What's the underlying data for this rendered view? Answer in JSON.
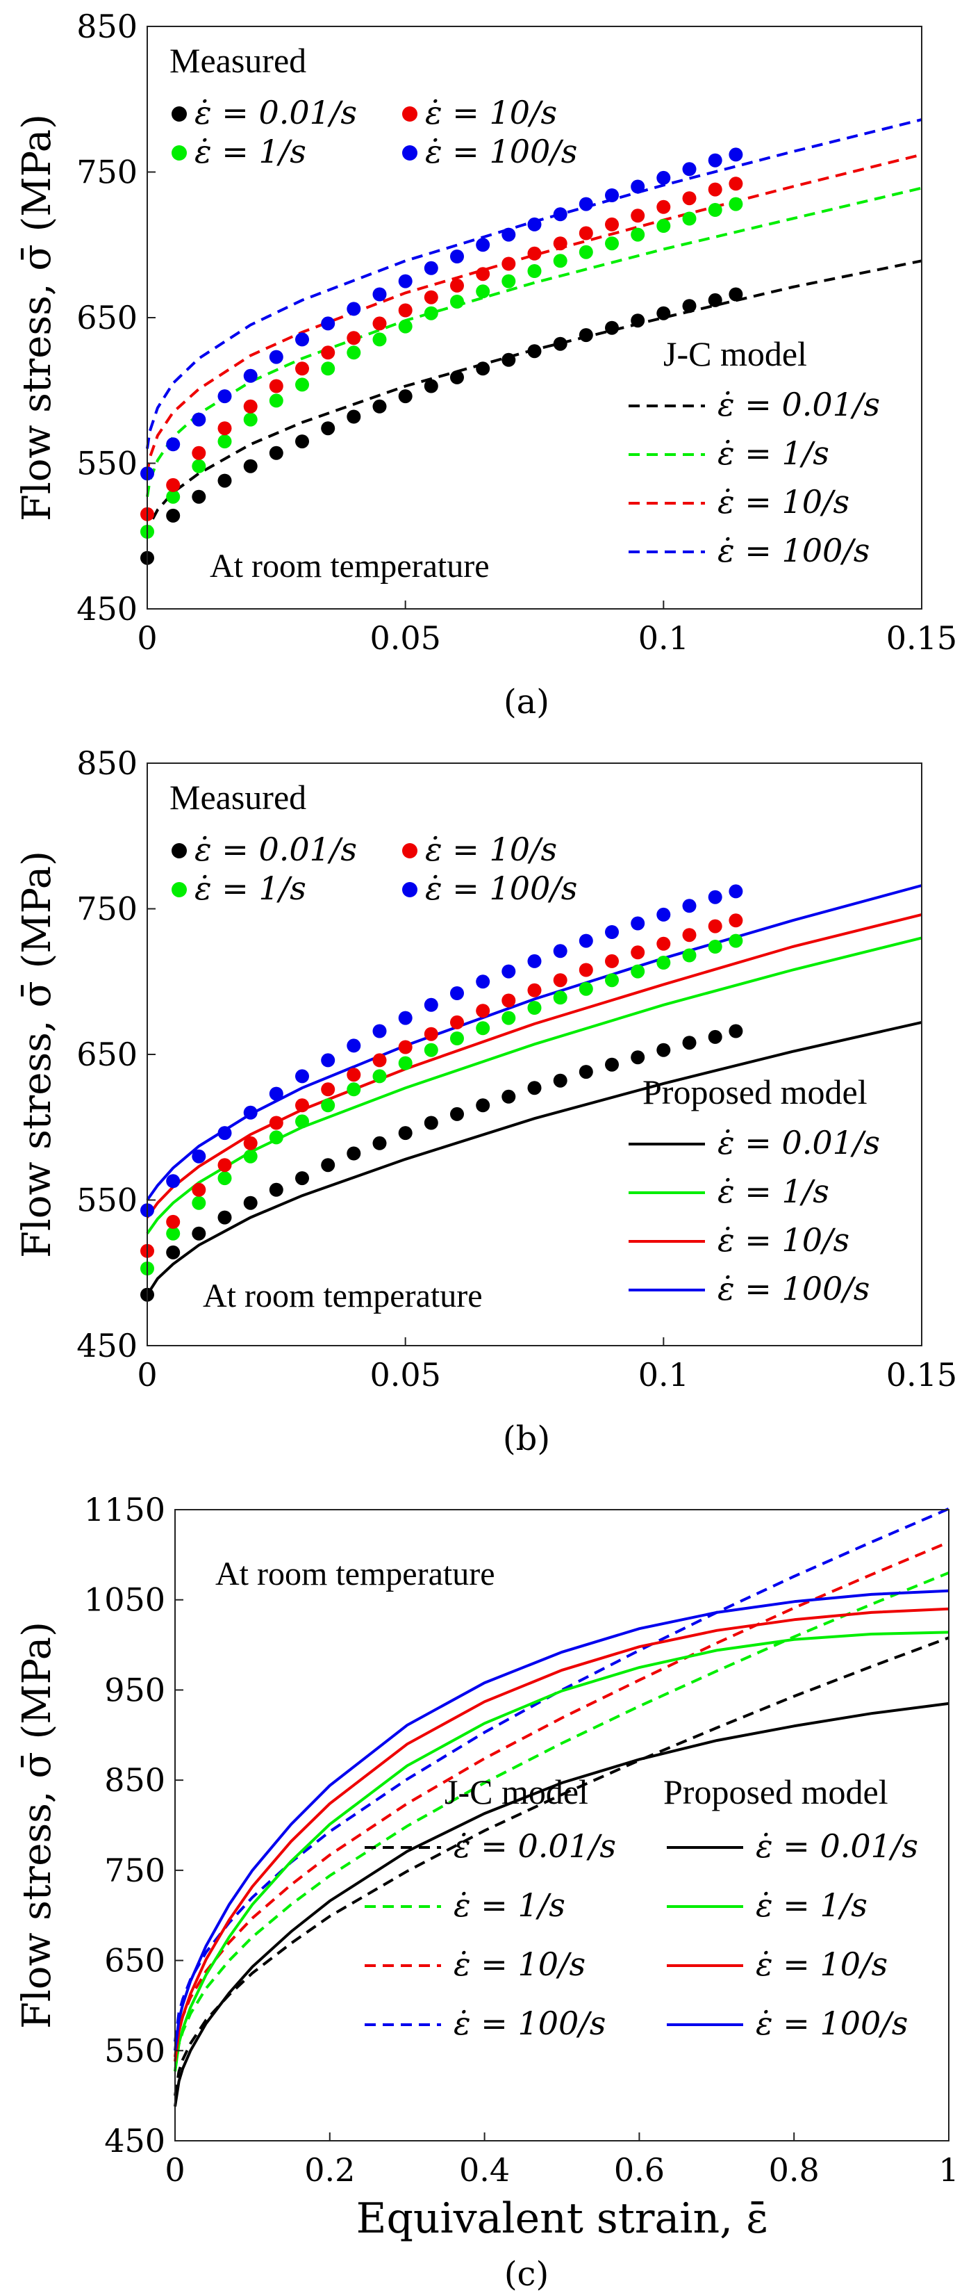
{
  "figure": {
    "colors": {
      "0.01/s": "#000000",
      "1/s": "#00ee00",
      "10/s": "#ee0000",
      "100/s": "#0000ee"
    },
    "rate_labels": [
      "ε̇ = 0.01/s",
      "ε̇ = 1/s",
      "ε̇ = 10/s",
      "ε̇ = 100/s"
    ]
  },
  "chart_data": [
    {
      "panel": "(a)",
      "type": "line",
      "ylabel": "Flow stress, σ̄ (MPa)",
      "xlabel": "",
      "xlim": [
        0,
        0.15
      ],
      "ylim": [
        450,
        850
      ],
      "xticks": [
        "0",
        "0.05",
        "0.1",
        "0.15"
      ],
      "yticks": [
        "450",
        "550",
        "650",
        "750",
        "850"
      ],
      "annotation": "At room temperature",
      "measured_title": "Measured",
      "model_title": "J-C model",
      "model_style": "dashed",
      "measured_x": [
        0,
        0.005,
        0.01,
        0.015,
        0.02,
        0.025,
        0.03,
        0.035,
        0.04,
        0.045,
        0.05,
        0.055,
        0.06,
        0.065,
        0.07,
        0.075,
        0.08,
        0.085,
        0.09,
        0.095,
        0.1,
        0.105,
        0.11,
        0.114
      ],
      "measured": [
        {
          "name": "ε̇ = 0.01/s",
          "values": [
            485,
            514,
            527,
            538,
            548,
            557,
            565,
            574,
            582,
            589,
            596,
            603,
            609,
            615,
            621,
            627,
            632,
            638,
            643,
            648,
            653,
            658,
            662,
            666
          ]
        },
        {
          "name": "ε̇ = 1/s",
          "values": [
            503,
            527,
            548,
            565,
            580,
            593,
            604,
            615,
            626,
            635,
            644,
            653,
            661,
            668,
            675,
            682,
            689,
            695,
            701,
            707,
            713,
            718,
            724,
            728
          ]
        },
        {
          "name": "ε̇ = 10/s",
          "values": [
            515,
            535,
            557,
            574,
            589,
            603,
            615,
            626,
            636,
            646,
            655,
            664,
            672,
            680,
            687,
            694,
            701,
            708,
            714,
            720,
            726,
            732,
            738,
            742
          ]
        },
        {
          "name": "ε̇ = 100/s",
          "values": [
            543,
            563,
            580,
            596,
            610,
            623,
            635,
            646,
            656,
            666,
            675,
            684,
            692,
            700,
            707,
            714,
            721,
            728,
            734,
            740,
            746,
            752,
            758,
            762
          ]
        }
      ],
      "model": [
        {
          "name": "ε̇ = 0.01/s",
          "x": [
            0,
            0.0005,
            0.002,
            0.005,
            0.01,
            0.02,
            0.03,
            0.05,
            0.075,
            0.1,
            0.125,
            0.15
          ],
          "values": [
            500,
            508,
            518,
            530,
            543,
            563,
            578,
            603,
            628,
            650,
            671,
            689
          ]
        },
        {
          "name": "ε̇ = 1/s",
          "x": [
            0,
            0.0005,
            0.002,
            0.005,
            0.01,
            0.02,
            0.03,
            0.05,
            0.075,
            0.1,
            0.125,
            0.15
          ],
          "values": [
            527,
            538,
            552,
            568,
            584,
            606,
            622,
            648,
            674,
            697,
            718,
            739
          ]
        },
        {
          "name": "ε̇ = 10/s",
          "x": [
            0,
            0.0005,
            0.002,
            0.005,
            0.01,
            0.02,
            0.03,
            0.05,
            0.075,
            0.1,
            0.125,
            0.15
          ],
          "values": [
            543,
            554,
            569,
            585,
            601,
            624,
            640,
            667,
            693,
            717,
            740,
            762
          ]
        },
        {
          "name": "ε̇ = 100/s",
          "x": [
            0,
            0.0005,
            0.002,
            0.005,
            0.01,
            0.02,
            0.03,
            0.05,
            0.075,
            0.1,
            0.125,
            0.15
          ],
          "values": [
            560,
            572,
            588,
            605,
            622,
            645,
            662,
            689,
            716,
            741,
            764,
            786
          ]
        }
      ]
    },
    {
      "panel": "(b)",
      "type": "line",
      "ylabel": "Flow stress, σ̄ (MPa)",
      "xlabel": "",
      "xlim": [
        0,
        0.15
      ],
      "ylim": [
        450,
        850
      ],
      "xticks": [
        "0",
        "0.05",
        "0.1",
        "0.15"
      ],
      "yticks": [
        "450",
        "550",
        "650",
        "750",
        "850"
      ],
      "annotation": "At room temperature",
      "measured_title": "Measured",
      "model_title": "Proposed model",
      "model_style": "solid",
      "measured_x": [
        0,
        0.005,
        0.01,
        0.015,
        0.02,
        0.025,
        0.03,
        0.035,
        0.04,
        0.045,
        0.05,
        0.055,
        0.06,
        0.065,
        0.07,
        0.075,
        0.08,
        0.085,
        0.09,
        0.095,
        0.1,
        0.105,
        0.11,
        0.114
      ],
      "measured": [
        {
          "name": "ε̇ = 0.01/s",
          "values": [
            485,
            514,
            527,
            538,
            548,
            557,
            565,
            574,
            582,
            589,
            596,
            603,
            609,
            615,
            621,
            627,
            632,
            638,
            643,
            648,
            653,
            658,
            662,
            666
          ]
        },
        {
          "name": "ε̇ = 1/s",
          "values": [
            503,
            527,
            548,
            565,
            580,
            593,
            604,
            615,
            626,
            635,
            644,
            653,
            661,
            668,
            675,
            682,
            689,
            695,
            701,
            707,
            713,
            718,
            724,
            728
          ]
        },
        {
          "name": "ε̇ = 10/s",
          "values": [
            515,
            535,
            557,
            574,
            589,
            603,
            615,
            626,
            636,
            646,
            655,
            664,
            672,
            680,
            687,
            694,
            701,
            708,
            714,
            720,
            726,
            732,
            738,
            742
          ]
        },
        {
          "name": "ε̇ = 100/s",
          "values": [
            543,
            563,
            580,
            596,
            610,
            623,
            635,
            646,
            656,
            666,
            675,
            684,
            692,
            700,
            707,
            714,
            721,
            728,
            734,
            740,
            746,
            752,
            758,
            762
          ]
        }
      ],
      "model": [
        {
          "name": "ε̇ = 0.01/s",
          "x": [
            0,
            0.002,
            0.005,
            0.01,
            0.02,
            0.03,
            0.05,
            0.075,
            0.1,
            0.125,
            0.15
          ],
          "values": [
            485,
            496,
            506,
            519,
            538,
            553,
            578,
            606,
            630,
            652,
            672
          ]
        },
        {
          "name": "ε̇ = 1/s",
          "x": [
            0,
            0.002,
            0.005,
            0.01,
            0.02,
            0.03,
            0.05,
            0.075,
            0.1,
            0.125,
            0.15
          ],
          "values": [
            527,
            537,
            548,
            562,
            583,
            600,
            627,
            657,
            684,
            708,
            730
          ]
        },
        {
          "name": "ε̇ = 10/s",
          "x": [
            0,
            0.002,
            0.005,
            0.01,
            0.02,
            0.03,
            0.05,
            0.075,
            0.1,
            0.125,
            0.15
          ],
          "values": [
            538,
            548,
            559,
            573,
            595,
            612,
            640,
            671,
            698,
            724,
            746
          ]
        },
        {
          "name": "ε̇ = 100/s",
          "x": [
            0,
            0.002,
            0.005,
            0.01,
            0.02,
            0.03,
            0.05,
            0.075,
            0.1,
            0.125,
            0.15
          ],
          "values": [
            550,
            560,
            572,
            587,
            609,
            627,
            656,
            688,
            716,
            742,
            766
          ]
        }
      ]
    },
    {
      "panel": "(c)",
      "type": "line",
      "ylabel": "Flow stress, σ̄ (MPa)",
      "xlabel": "Equivalent strain, ε̄",
      "xlim": [
        0,
        1
      ],
      "ylim": [
        450,
        1150
      ],
      "xticks": [
        "0",
        "0.2",
        "0.4",
        "0.6",
        "0.8",
        "1"
      ],
      "yticks": [
        "450",
        "550",
        "650",
        "750",
        "850",
        "950",
        "1050",
        "1150"
      ],
      "annotation": "At room temperature",
      "jc_title": "J-C model",
      "proposed_title": "Proposed model",
      "x": [
        0,
        0.005,
        0.01,
        0.02,
        0.04,
        0.07,
        0.1,
        0.15,
        0.2,
        0.3,
        0.4,
        0.5,
        0.6,
        0.7,
        0.8,
        0.9,
        1.0
      ],
      "jc": [
        {
          "name": "ε̇ = 0.01/s",
          "values": [
            500,
            527,
            540,
            558,
            584,
            612,
            636,
            669,
            699,
            749,
            794,
            834,
            872,
            908,
            943,
            976,
            1008
          ]
        },
        {
          "name": "ε̇ = 1/s",
          "values": [
            527,
            557,
            571,
            591,
            619,
            650,
            676,
            712,
            744,
            799,
            847,
            891,
            932,
            971,
            1009,
            1045,
            1080
          ]
        },
        {
          "name": "ε̇ = 10/s",
          "values": [
            543,
            574,
            588,
            609,
            638,
            670,
            697,
            734,
            767,
            824,
            874,
            919,
            961,
            1002,
            1041,
            1078,
            1114
          ]
        },
        {
          "name": "ε̇ = 100/s",
          "values": [
            560,
            592,
            607,
            629,
            659,
            692,
            720,
            759,
            793,
            851,
            903,
            950,
            994,
            1036,
            1076,
            1114,
            1151
          ]
        }
      ],
      "proposed": [
        {
          "name": "ε̇ = 0.01/s",
          "values": [
            488,
            516,
            530,
            550,
            580,
            614,
            643,
            682,
            716,
            771,
            813,
            847,
            873,
            894,
            910,
            924,
            935
          ]
        },
        {
          "name": "ε̇ = 1/s",
          "values": [
            527,
            558,
            574,
            598,
            634,
            676,
            712,
            760,
            801,
            866,
            913,
            949,
            975,
            994,
            1006,
            1012,
            1014
          ]
        },
        {
          "name": "ε̇ = 10/s",
          "values": [
            538,
            571,
            588,
            613,
            651,
            695,
            732,
            782,
            824,
            890,
            937,
            972,
            998,
            1016,
            1028,
            1036,
            1040
          ]
        },
        {
          "name": "ε̇ = 100/s",
          "values": [
            550,
            584,
            601,
            627,
            666,
            712,
            750,
            801,
            844,
            911,
            958,
            992,
            1018,
            1036,
            1048,
            1056,
            1060
          ]
        }
      ]
    }
  ]
}
